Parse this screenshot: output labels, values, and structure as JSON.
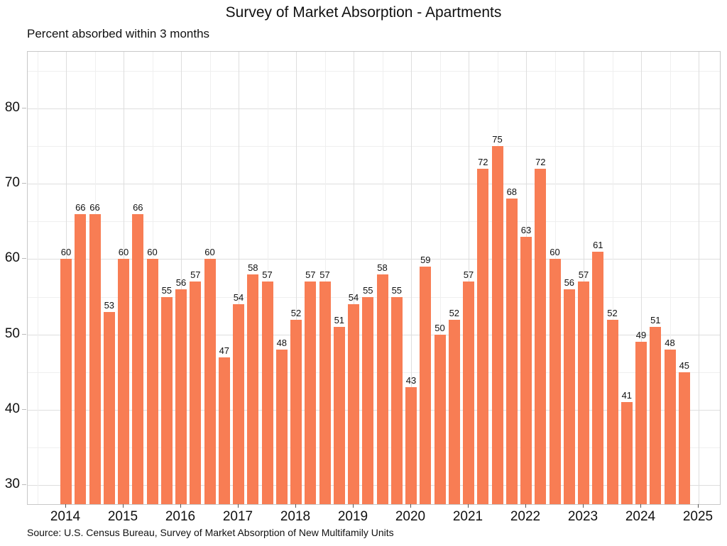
{
  "chart_data": {
    "type": "bar",
    "title": "Survey of Market Absorption - Apartments",
    "subtitle": "Percent absorbed within 3 months",
    "source_note": "Source: U.S. Census Bureau, Survey of Market Absorption of New Multifamily Units",
    "xlabel": "",
    "ylabel": "",
    "legend": "none",
    "grid": "major+minor",
    "bar_value_labels_visible": true,
    "categories": [
      "2014 Q1",
      "2014 Q2",
      "2014 Q3",
      "2014 Q4",
      "2015 Q1",
      "2015 Q2",
      "2015 Q3",
      "2015 Q4",
      "2016 Q1",
      "2016 Q2",
      "2016 Q3",
      "2016 Q4",
      "2017 Q1",
      "2017 Q2",
      "2017 Q3",
      "2017 Q4",
      "2018 Q1",
      "2018 Q2",
      "2018 Q3",
      "2018 Q4",
      "2019 Q1",
      "2019 Q2",
      "2019 Q3",
      "2019 Q4",
      "2020 Q1",
      "2020 Q2",
      "2020 Q3",
      "2020 Q4",
      "2021 Q1",
      "2021 Q2",
      "2021 Q3",
      "2021 Q4",
      "2022 Q1",
      "2022 Q2",
      "2022 Q3",
      "2022 Q4",
      "2023 Q1",
      "2023 Q2",
      "2023 Q3",
      "2023 Q4",
      "2024 Q1",
      "2024 Q2",
      "2024 Q3",
      "2024 Q4"
    ],
    "values": [
      60,
      66,
      66,
      53,
      60,
      66,
      60,
      55,
      56,
      57,
      60,
      47,
      54,
      58,
      57,
      48,
      52,
      57,
      57,
      51,
      54,
      55,
      58,
      55,
      43,
      59,
      50,
      52,
      57,
      72,
      75,
      68,
      63,
      72,
      60,
      56,
      57,
      61,
      52,
      41,
      49,
      51,
      48,
      45
    ],
    "x_tick_labels": [
      "2014",
      "2015",
      "2016",
      "2017",
      "2018",
      "2019",
      "2020",
      "2021",
      "2022",
      "2023",
      "2024",
      "2025"
    ],
    "y_major_ticks": [
      30,
      40,
      50,
      60,
      70,
      80
    ],
    "y_minor_ticks": [
      35,
      45,
      55,
      65,
      75,
      85
    ],
    "ylim": [
      27.5,
      87.5
    ],
    "colors": {
      "bar": "#f87d54",
      "grid_major": "#dedede",
      "grid_minor": "#efefef",
      "plot_border": "#c8c8c8",
      "text": "#111111"
    }
  }
}
